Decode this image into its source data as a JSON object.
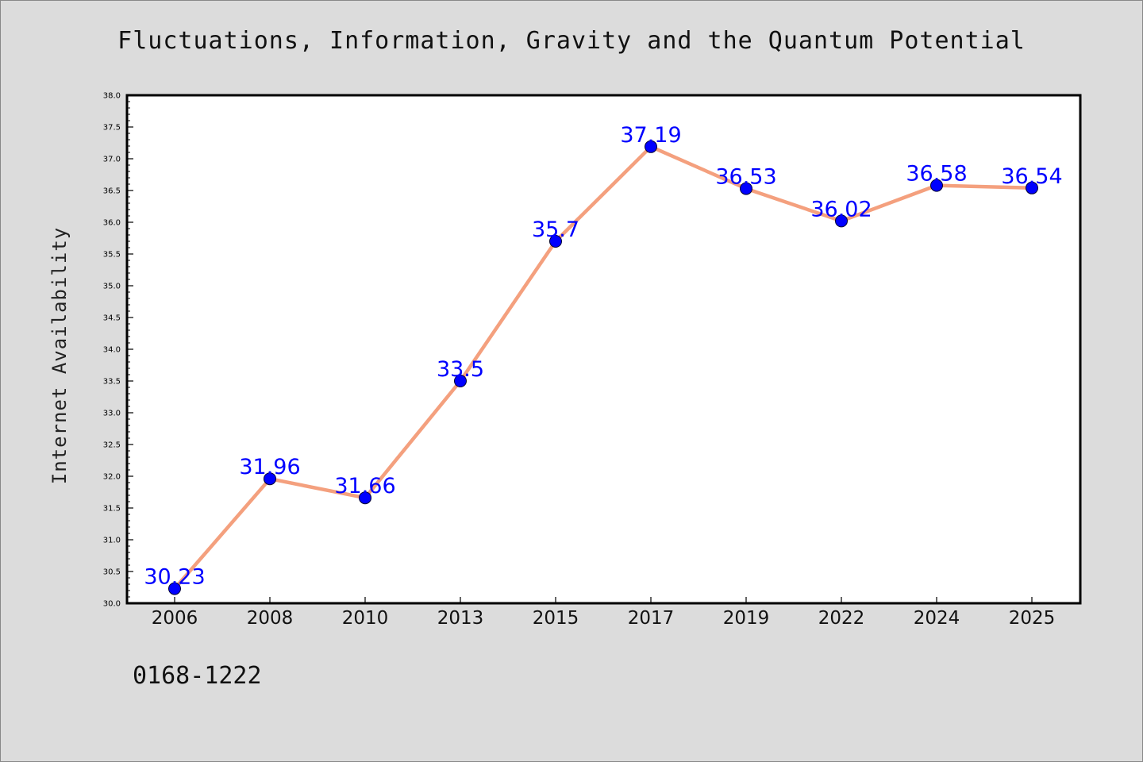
{
  "colors": {
    "background": "#dcdcdc",
    "plot_background": "#ffffff",
    "line": "#f4a07e",
    "marker": "#0000ff",
    "data_label": "#0000ff",
    "text": "#111111"
  },
  "footnote": "0168-1222",
  "chart_data": {
    "type": "line",
    "title": "Fluctuations, Information, Gravity and the Quantum Potential",
    "xlabel": "",
    "ylabel": "Internet Availability",
    "categories": [
      "2006",
      "2008",
      "2010",
      "2013",
      "2015",
      "2017",
      "2019",
      "2022",
      "2024",
      "2025"
    ],
    "series": [
      {
        "values": [
          30.23,
          31.96,
          31.66,
          33.5,
          35.7,
          37.19,
          36.53,
          36.02,
          36.58,
          36.54
        ],
        "labels": [
          "30.23",
          "31.96",
          "31.66",
          "33.5",
          "35.7",
          "37.19",
          "36.53",
          "36.02",
          "36.58",
          "36.54"
        ]
      }
    ],
    "ylim": [
      30.0,
      38.0
    ],
    "yticks": [
      "30.0",
      "30.5",
      "31.0",
      "31.5",
      "32.0",
      "32.5",
      "33.0",
      "33.5",
      "34.0",
      "34.5",
      "35.0",
      "35.5",
      "36.0",
      "36.5",
      "37.0",
      "37.5",
      "38.0"
    ],
    "y_minor_step": 0.1,
    "grid": false,
    "legend": "none",
    "markers": true
  }
}
